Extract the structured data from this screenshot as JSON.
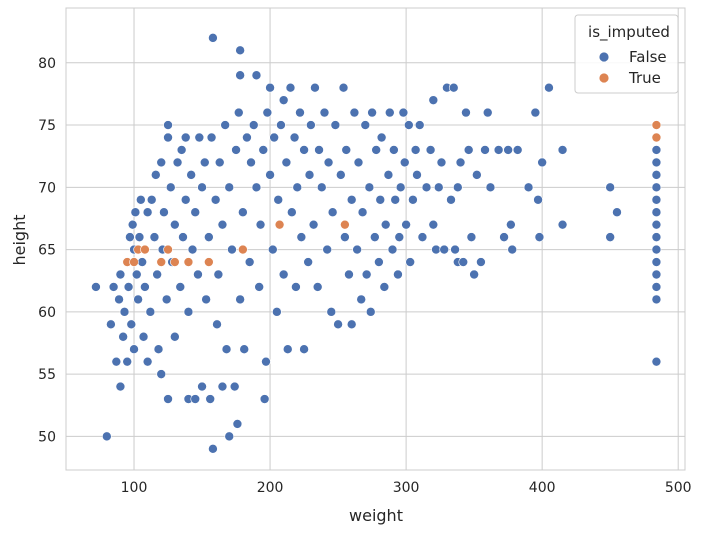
{
  "chart_data": {
    "type": "scatter",
    "title": "",
    "xlabel": "weight",
    "ylabel": "height",
    "xlim": [
      50,
      505
    ],
    "ylim": [
      47.3,
      84.4
    ],
    "xticks": [
      100,
      200,
      300,
      400,
      500
    ],
    "yticks": [
      50,
      55,
      60,
      65,
      70,
      75,
      80
    ],
    "grid": true,
    "legend": {
      "title": "is_imputed",
      "placement": "top-right",
      "entries": [
        {
          "label": "False",
          "color": "#4c72b0"
        },
        {
          "label": "True",
          "color": "#dd8452"
        }
      ]
    },
    "series": [
      {
        "name": "False",
        "color": "#4c72b0",
        "points": [
          [
            72,
            62
          ],
          [
            80,
            50
          ],
          [
            83,
            59
          ],
          [
            85,
            62
          ],
          [
            87,
            56
          ],
          [
            89,
            61
          ],
          [
            90,
            63
          ],
          [
            90,
            54
          ],
          [
            92,
            58
          ],
          [
            93,
            60
          ],
          [
            95,
            64
          ],
          [
            95,
            56
          ],
          [
            96,
            62
          ],
          [
            97,
            66
          ],
          [
            98,
            59
          ],
          [
            99,
            67
          ],
          [
            100,
            65
          ],
          [
            100,
            57
          ],
          [
            101,
            68
          ],
          [
            102,
            63
          ],
          [
            103,
            61
          ],
          [
            104,
            66
          ],
          [
            105,
            69
          ],
          [
            106,
            64
          ],
          [
            107,
            58
          ],
          [
            108,
            62
          ],
          [
            110,
            68
          ],
          [
            110,
            56
          ],
          [
            112,
            60
          ],
          [
            113,
            69
          ],
          [
            115,
            66
          ],
          [
            116,
            71
          ],
          [
            117,
            63
          ],
          [
            118,
            57
          ],
          [
            120,
            72
          ],
          [
            120,
            55
          ],
          [
            121,
            65
          ],
          [
            122,
            68
          ],
          [
            124,
            61
          ],
          [
            125,
            74
          ],
          [
            125,
            75
          ],
          [
            125,
            53
          ],
          [
            127,
            70
          ],
          [
            128,
            64
          ],
          [
            130,
            67
          ],
          [
            130,
            58
          ],
          [
            132,
            72
          ],
          [
            134,
            62
          ],
          [
            135,
            73
          ],
          [
            136,
            66
          ],
          [
            138,
            74
          ],
          [
            138,
            69
          ],
          [
            140,
            60
          ],
          [
            140,
            53
          ],
          [
            142,
            71
          ],
          [
            143,
            65
          ],
          [
            145,
            53
          ],
          [
            145,
            68
          ],
          [
            147,
            63
          ],
          [
            148,
            74
          ],
          [
            150,
            54
          ],
          [
            150,
            70
          ],
          [
            152,
            72
          ],
          [
            153,
            61
          ],
          [
            155,
            66
          ],
          [
            156,
            53
          ],
          [
            157,
            74
          ],
          [
            158,
            49
          ],
          [
            158,
            82
          ],
          [
            160,
            69
          ],
          [
            161,
            59
          ],
          [
            162,
            63
          ],
          [
            163,
            72
          ],
          [
            165,
            54
          ],
          [
            165,
            67
          ],
          [
            167,
            75
          ],
          [
            168,
            57
          ],
          [
            170,
            70
          ],
          [
            170,
            50
          ],
          [
            172,
            65
          ],
          [
            174,
            54
          ],
          [
            175,
            73
          ],
          [
            176,
            51
          ],
          [
            177,
            76
          ],
          [
            178,
            61
          ],
          [
            178,
            79
          ],
          [
            178,
            81
          ],
          [
            180,
            68
          ],
          [
            181,
            57
          ],
          [
            183,
            74
          ],
          [
            185,
            64
          ],
          [
            186,
            72
          ],
          [
            188,
            75
          ],
          [
            190,
            70
          ],
          [
            190,
            79
          ],
          [
            192,
            62
          ],
          [
            193,
            67
          ],
          [
            195,
            73
          ],
          [
            196,
            53
          ],
          [
            197,
            56
          ],
          [
            198,
            76
          ],
          [
            200,
            78
          ],
          [
            200,
            71
          ],
          [
            202,
            65
          ],
          [
            203,
            74
          ],
          [
            205,
            60
          ],
          [
            206,
            69
          ],
          [
            208,
            75
          ],
          [
            210,
            77
          ],
          [
            210,
            63
          ],
          [
            212,
            72
          ],
          [
            213,
            57
          ],
          [
            215,
            78
          ],
          [
            216,
            68
          ],
          [
            218,
            74
          ],
          [
            219,
            62
          ],
          [
            220,
            70
          ],
          [
            222,
            76
          ],
          [
            223,
            66
          ],
          [
            225,
            57
          ],
          [
            225,
            73
          ],
          [
            228,
            64
          ],
          [
            229,
            71
          ],
          [
            230,
            75
          ],
          [
            232,
            67
          ],
          [
            233,
            78
          ],
          [
            235,
            62
          ],
          [
            236,
            73
          ],
          [
            238,
            70
          ],
          [
            240,
            76
          ],
          [
            242,
            65
          ],
          [
            243,
            72
          ],
          [
            245,
            60
          ],
          [
            246,
            68
          ],
          [
            248,
            75
          ],
          [
            250,
            59
          ],
          [
            252,
            71
          ],
          [
            254,
            78
          ],
          [
            255,
            66
          ],
          [
            256,
            73
          ],
          [
            258,
            63
          ],
          [
            260,
            69
          ],
          [
            260,
            59
          ],
          [
            262,
            76
          ],
          [
            264,
            65
          ],
          [
            265,
            72
          ],
          [
            267,
            61
          ],
          [
            268,
            68
          ],
          [
            270,
            75
          ],
          [
            271,
            63
          ],
          [
            273,
            70
          ],
          [
            274,
            60
          ],
          [
            275,
            76
          ],
          [
            277,
            66
          ],
          [
            278,
            73
          ],
          [
            280,
            64
          ],
          [
            281,
            69
          ],
          [
            282,
            74
          ],
          [
            284,
            62
          ],
          [
            285,
            67
          ],
          [
            287,
            71
          ],
          [
            288,
            76
          ],
          [
            290,
            65
          ],
          [
            291,
            73
          ],
          [
            292,
            69
          ],
          [
            294,
            63
          ],
          [
            295,
            66
          ],
          [
            296,
            70
          ],
          [
            298,
            76
          ],
          [
            299,
            72
          ],
          [
            300,
            67
          ],
          [
            302,
            75
          ],
          [
            303,
            64
          ],
          [
            305,
            69
          ],
          [
            307,
            73
          ],
          [
            308,
            71
          ],
          [
            310,
            75
          ],
          [
            312,
            66
          ],
          [
            315,
            70
          ],
          [
            318,
            73
          ],
          [
            320,
            67
          ],
          [
            320,
            77
          ],
          [
            322,
            65
          ],
          [
            324,
            70
          ],
          [
            326,
            72
          ],
          [
            328,
            65
          ],
          [
            330,
            78
          ],
          [
            333,
            69
          ],
          [
            335,
            78
          ],
          [
            336,
            65
          ],
          [
            338,
            70
          ],
          [
            338,
            64
          ],
          [
            340,
            72
          ],
          [
            342,
            64
          ],
          [
            344,
            76
          ],
          [
            346,
            73
          ],
          [
            348,
            66
          ],
          [
            350,
            63
          ],
          [
            352,
            71
          ],
          [
            355,
            64
          ],
          [
            358,
            73
          ],
          [
            360,
            76
          ],
          [
            362,
            70
          ],
          [
            368,
            73
          ],
          [
            372,
            66
          ],
          [
            375,
            73
          ],
          [
            377,
            67
          ],
          [
            378,
            65
          ],
          [
            382,
            73
          ],
          [
            390,
            70
          ],
          [
            395,
            76
          ],
          [
            397,
            69
          ],
          [
            398,
            66
          ],
          [
            400,
            72
          ],
          [
            405,
            78
          ],
          [
            415,
            73
          ],
          [
            415,
            67
          ],
          [
            450,
            70
          ],
          [
            450,
            66
          ],
          [
            455,
            68
          ],
          [
            484,
            56
          ],
          [
            484,
            61
          ],
          [
            484,
            62
          ],
          [
            484,
            63
          ],
          [
            484,
            64
          ],
          [
            484,
            65
          ],
          [
            484,
            66
          ],
          [
            484,
            67
          ],
          [
            484,
            68
          ],
          [
            484,
            69
          ],
          [
            484,
            70
          ],
          [
            484,
            71
          ],
          [
            484,
            72
          ],
          [
            484,
            73
          ]
        ]
      },
      {
        "name": "True",
        "color": "#dd8452",
        "points": [
          [
            95,
            64
          ],
          [
            100,
            64
          ],
          [
            103,
            65
          ],
          [
            108,
            65
          ],
          [
            120,
            64
          ],
          [
            125,
            65
          ],
          [
            130,
            64
          ],
          [
            140,
            64
          ],
          [
            155,
            64
          ],
          [
            180,
            65
          ],
          [
            207,
            67
          ],
          [
            255,
            67
          ],
          [
            484,
            74
          ],
          [
            484,
            75
          ]
        ]
      }
    ]
  }
}
